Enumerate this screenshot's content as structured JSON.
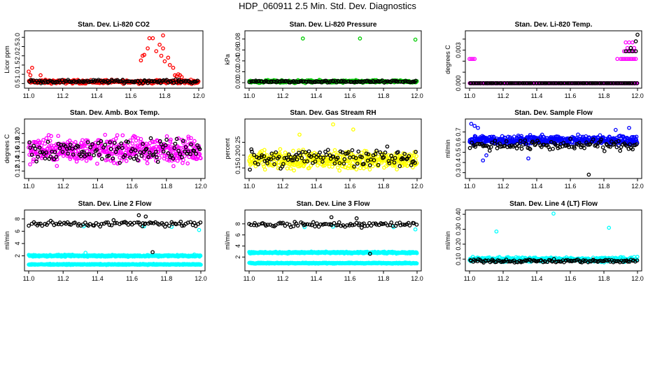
{
  "page_title": "HDP_060911  2.5 Min. Std. Dev. Diagnostics",
  "colors": {
    "black": "#000000",
    "red": "#ff0000",
    "green": "#00cc00",
    "magenta": "#ff00ff",
    "yellow": "#ffff00",
    "blue": "#0000ff",
    "cyan": "#00ffff"
  },
  "chart_data": [
    {
      "id": "co2",
      "type": "scatter",
      "title": "Stan. Dev. Li-820 CO2",
      "ylabel": "Licor ppm",
      "xlim": [
        11.0,
        12.0
      ],
      "ylim": [
        0.4,
        3.2
      ],
      "xticks": [
        11.0,
        11.2,
        11.4,
        11.6,
        11.8,
        12.0
      ],
      "xtick_labels": [
        "11.0",
        "11.2",
        "11.4",
        "11.6",
        "11.8",
        "12.0"
      ],
      "yticks": [
        0.5,
        1.0,
        1.5,
        2.0,
        2.5,
        3.0
      ],
      "ytick_labels": [
        "0.5",
        "1.0",
        "1.5",
        "2.0",
        "2.5",
        "3.0"
      ],
      "series": [
        {
          "name": "black",
          "color": "#000000",
          "gen": {
            "count": 120,
            "base": 0.62,
            "noise": 0.07
          }
        },
        {
          "name": "red",
          "color": "#ff0000",
          "gen": {
            "count": 300,
            "base": 0.6,
            "noise": 0.08
          },
          "extra": [
            [
              11.0,
              1.15
            ],
            [
              11.02,
              1.35
            ],
            [
              11.01,
              0.95
            ],
            [
              11.07,
              0.95
            ],
            [
              11.66,
              1.75
            ],
            [
              11.67,
              2.0
            ],
            [
              11.68,
              2.05
            ],
            [
              11.7,
              2.4
            ],
            [
              11.71,
              2.95
            ],
            [
              11.73,
              2.95
            ],
            [
              11.75,
              2.25
            ],
            [
              11.77,
              2.6
            ],
            [
              11.78,
              2.0
            ],
            [
              11.79,
              2.4
            ],
            [
              11.79,
              3.1
            ],
            [
              11.8,
              1.7
            ],
            [
              11.82,
              1.9
            ],
            [
              11.83,
              1.5
            ],
            [
              11.85,
              1.35
            ],
            [
              11.86,
              0.95
            ],
            [
              11.87,
              0.9
            ],
            [
              11.88,
              1.0
            ],
            [
              11.89,
              0.95
            ],
            [
              11.9,
              0.85
            ]
          ]
        }
      ]
    },
    {
      "id": "pressure",
      "type": "scatter",
      "title": "Stan. Dev. Li-820 Pressure",
      "ylabel": "kPa",
      "xlim": [
        11.0,
        12.0
      ],
      "ylim": [
        -0.005,
        0.09
      ],
      "xticks": [
        11.0,
        11.2,
        11.4,
        11.6,
        11.8,
        12.0
      ],
      "xtick_labels": [
        "11.0",
        "11.2",
        "11.4",
        "11.6",
        "11.8",
        "12.0"
      ],
      "yticks": [
        0.0,
        0.02,
        0.04,
        0.06,
        0.08
      ],
      "ytick_labels": [
        "0.00",
        "0.02",
        "0.04",
        "0.06",
        "0.08"
      ],
      "series": [
        {
          "name": "black",
          "color": "#000000",
          "gen": {
            "count": 120,
            "base": 0.002,
            "noise": 0.0015
          }
        },
        {
          "name": "green",
          "color": "#00cc00",
          "gen": {
            "count": 300,
            "base": 0.002,
            "noise": 0.002
          },
          "extra": [
            [
              11.32,
              0.081
            ],
            [
              11.66,
              0.081
            ],
            [
              11.99,
              0.079
            ]
          ]
        }
      ]
    },
    {
      "id": "temp",
      "type": "scatter",
      "title": "Stan. Dev. Li-820 Temp.",
      "ylabel": "degrees C",
      "xlim": [
        11.0,
        12.0
      ],
      "ylim": [
        -0.0002,
        0.0045
      ],
      "xticks": [
        11.0,
        11.2,
        11.4,
        11.6,
        11.8,
        12.0
      ],
      "xtick_labels": [
        "11.0",
        "11.2",
        "11.4",
        "11.6",
        "11.8",
        "12.0"
      ],
      "yticks": [
        0.0,
        0.001,
        0.002,
        0.003,
        0.004
      ],
      "ytick_labels": [
        "0.000",
        "",
        "",
        "0.003",
        ""
      ],
      "series": [
        {
          "name": "black",
          "color": "#000000",
          "gen": {
            "count": 120,
            "base": 0.0,
            "noise": 0.0
          },
          "extra": [
            [
              11.93,
              0.0029
            ],
            [
              11.95,
              0.0029
            ],
            [
              11.96,
              0.0032
            ],
            [
              11.97,
              0.0029
            ],
            [
              11.99,
              0.0029
            ],
            [
              11.99,
              0.0038
            ],
            [
              12.0,
              0.0044
            ]
          ]
        },
        {
          "name": "magenta",
          "color": "#ff00ff",
          "gen": {
            "count": 300,
            "base": 0.0,
            "noise": 0.0
          },
          "extra": [
            [
              11.0,
              0.0022
            ],
            [
              11.01,
              0.0022
            ],
            [
              11.02,
              0.0022
            ],
            [
              11.03,
              0.0022
            ],
            [
              11.88,
              0.0022
            ],
            [
              11.9,
              0.0022
            ],
            [
              11.91,
              0.0022
            ],
            [
              11.92,
              0.0022
            ],
            [
              11.93,
              0.0022
            ],
            [
              11.94,
              0.0022
            ],
            [
              11.95,
              0.0022
            ],
            [
              11.96,
              0.0022
            ],
            [
              11.97,
              0.0022
            ],
            [
              11.98,
              0.0022
            ],
            [
              11.99,
              0.0022
            ],
            [
              11.92,
              0.0029
            ],
            [
              11.94,
              0.0029
            ],
            [
              11.96,
              0.0029
            ],
            [
              11.98,
              0.0029
            ],
            [
              11.93,
              0.0037
            ],
            [
              11.95,
              0.0037
            ],
            [
              11.97,
              0.0037
            ],
            [
              11.94,
              0.0032
            ],
            [
              11.98,
              0.0032
            ]
          ]
        }
      ]
    },
    {
      "id": "ambbox",
      "type": "scatter",
      "title": "Stan. Dev. Amb. Box Temp.",
      "ylabel": "degrees C",
      "xlim": [
        11.0,
        12.0
      ],
      "ylim": [
        0.11,
        0.225
      ],
      "xticks": [
        11.0,
        11.2,
        11.4,
        11.6,
        11.8,
        12.0
      ],
      "xtick_labels": [
        "11.0",
        "11.2",
        "11.4",
        "11.6",
        "11.8",
        "12.0"
      ],
      "yticks": [
        0.12,
        0.14,
        0.16,
        0.18,
        0.2
      ],
      "ytick_labels": [
        "0.12",
        "0.14",
        "0.16",
        "0.18",
        "0.20"
      ],
      "series": [
        {
          "name": "black",
          "color": "#000000",
          "gen": {
            "count": 120,
            "base": 0.165,
            "noise": 0.02
          }
        },
        {
          "name": "magenta",
          "color": "#ff00ff",
          "gen": {
            "count": 450,
            "base": 0.165,
            "noise": 0.022
          }
        }
      ]
    },
    {
      "id": "rh",
      "type": "scatter",
      "title": "Stan. Dev. Gas Stream RH",
      "ylabel": "percent",
      "xlim": [
        11.0,
        12.0
      ],
      "ylim": [
        0.12,
        0.33
      ],
      "xticks": [
        11.0,
        11.2,
        11.4,
        11.6,
        11.8,
        12.0
      ],
      "xtick_labels": [
        "11.0",
        "11.2",
        "11.4",
        "11.6",
        "11.8",
        "12.0"
      ],
      "yticks": [
        0.15,
        0.2,
        0.25
      ],
      "ytick_labels": [
        "0.15",
        "0.20",
        "0.25"
      ],
      "series": [
        {
          "name": "black",
          "color": "#000000",
          "gen": {
            "count": 120,
            "base": 0.19,
            "noise": 0.03
          }
        },
        {
          "name": "yellow",
          "color": "#ffff00",
          "gen": {
            "count": 450,
            "base": 0.18,
            "noise": 0.028
          },
          "extra": [
            [
              11.5,
              0.32
            ],
            [
              11.62,
              0.3
            ],
            [
              11.3,
              0.28
            ]
          ]
        }
      ]
    },
    {
      "id": "sampleflow",
      "type": "scatter",
      "title": "Stan. Dev. Sample Flow",
      "ylabel": "ml/min",
      "xlim": [
        11.0,
        12.0
      ],
      "ylim": [
        0.27,
        0.8
      ],
      "xticks": [
        11.0,
        11.2,
        11.4,
        11.6,
        11.8,
        12.0
      ],
      "xtick_labels": [
        "11.0",
        "11.2",
        "11.4",
        "11.6",
        "11.8",
        "12.0"
      ],
      "yticks": [
        0.3,
        0.4,
        0.5,
        0.6,
        0.7
      ],
      "ytick_labels": [
        "0.3",
        "0.4",
        "0.5",
        "0.6",
        "0.7"
      ],
      "series": [
        {
          "name": "black",
          "color": "#000000",
          "gen": {
            "count": 120,
            "base": 0.57,
            "noise": 0.04
          },
          "extra": [
            [
              11.71,
              0.28
            ]
          ]
        },
        {
          "name": "blue",
          "color": "#0000ff",
          "gen": {
            "count": 450,
            "base": 0.62,
            "noise": 0.035
          },
          "extra": [
            [
              11.01,
              0.78
            ],
            [
              11.03,
              0.76
            ],
            [
              11.05,
              0.74
            ],
            [
              11.08,
              0.42
            ],
            [
              11.1,
              0.47
            ],
            [
              11.35,
              0.44
            ],
            [
              11.87,
              0.72
            ],
            [
              11.95,
              0.74
            ]
          ]
        }
      ]
    },
    {
      "id": "line2",
      "type": "scatter",
      "title": "Stan. Dev. Line 2 Flow",
      "ylabel": "ml/min",
      "xlim": [
        11.0,
        12.0
      ],
      "ylim": [
        0.0,
        9.0
      ],
      "xticks": [
        11.0,
        11.2,
        11.4,
        11.6,
        11.8,
        12.0
      ],
      "xtick_labels": [
        "11.0",
        "11.2",
        "11.4",
        "11.6",
        "11.8",
        "12.0"
      ],
      "yticks": [
        2,
        4,
        6,
        8
      ],
      "ytick_labels": [
        "2",
        "4",
        "6",
        "8"
      ],
      "series": [
        {
          "name": "black",
          "color": "#000000",
          "gen": {
            "count": 90,
            "base": 7.2,
            "noise": 0.35
          },
          "extra": [
            [
              11.72,
              2.6
            ],
            [
              11.64,
              8.6
            ],
            [
              11.68,
              8.4
            ],
            [
              11.66,
              6.8
            ]
          ]
        },
        {
          "name": "cyan-upper",
          "color": "#00ffff",
          "gen": {
            "count": 420,
            "base": 2.0,
            "noise": 0.12
          },
          "extra": [
            [
              11.33,
              2.5
            ],
            [
              11.32,
              6.8
            ],
            [
              11.67,
              6.8
            ],
            [
              11.83,
              6.7
            ],
            [
              11.99,
              6.2
            ]
          ]
        },
        {
          "name": "cyan-lower",
          "color": "#00ffff",
          "gen": {
            "count": 420,
            "base": 0.6,
            "noise": 0.06
          }
        }
      ]
    },
    {
      "id": "line3",
      "type": "scatter",
      "title": "Stan. Dev. Line 3 Flow",
      "ylabel": "ml/min",
      "xlim": [
        11.0,
        12.0
      ],
      "ylim": [
        0.0,
        10.0
      ],
      "xticks": [
        11.0,
        11.2,
        11.4,
        11.6,
        11.8,
        12.0
      ],
      "xtick_labels": [
        "11.0",
        "11.2",
        "11.4",
        "11.6",
        "11.8",
        "12.0"
      ],
      "yticks": [
        2,
        4,
        6,
        8
      ],
      "ytick_labels": [
        "2",
        "4",
        "6",
        "8"
      ],
      "series": [
        {
          "name": "black",
          "color": "#000000",
          "gen": {
            "count": 90,
            "base": 7.9,
            "noise": 0.35
          },
          "extra": [
            [
              11.72,
              2.6
            ],
            [
              11.49,
              9.2
            ],
            [
              11.64,
              9.0
            ],
            [
              11.67,
              7.3
            ]
          ]
        },
        {
          "name": "cyan-upper",
          "color": "#00ffff",
          "gen": {
            "count": 420,
            "base": 2.8,
            "noise": 0.12
          },
          "extra": [
            [
              11.33,
              7.4
            ],
            [
              11.5,
              7.5
            ],
            [
              11.86,
              7.4
            ],
            [
              11.99,
              7.0
            ]
          ]
        },
        {
          "name": "cyan-lower",
          "color": "#00ffff",
          "gen": {
            "count": 420,
            "base": 0.9,
            "noise": 0.07
          }
        }
      ]
    },
    {
      "id": "line4",
      "type": "scatter",
      "title": "Stan. Dev. Line 4 (LT) Flow",
      "ylabel": "ml/min",
      "xlim": [
        11.0,
        12.0
      ],
      "ylim": [
        0.04,
        0.41
      ],
      "xticks": [
        11.0,
        11.2,
        11.4,
        11.6,
        11.8,
        12.0
      ],
      "xtick_labels": [
        "11.0",
        "11.2",
        "11.4",
        "11.6",
        "11.8",
        "12.0"
      ],
      "yticks": [
        0.1,
        0.2,
        0.3,
        0.4
      ],
      "ytick_labels": [
        "0.10",
        "0.20",
        "0.30",
        "0.40"
      ],
      "series": [
        {
          "name": "black",
          "color": "#000000",
          "gen": {
            "count": 120,
            "base": 0.088,
            "noise": 0.008
          }
        },
        {
          "name": "cyan",
          "color": "#00ffff",
          "gen": {
            "count": 420,
            "base": 0.098,
            "noise": 0.012
          },
          "extra": [
            [
              11.16,
              0.285
            ],
            [
              11.5,
              0.405
            ],
            [
              11.83,
              0.31
            ]
          ]
        }
      ]
    }
  ]
}
